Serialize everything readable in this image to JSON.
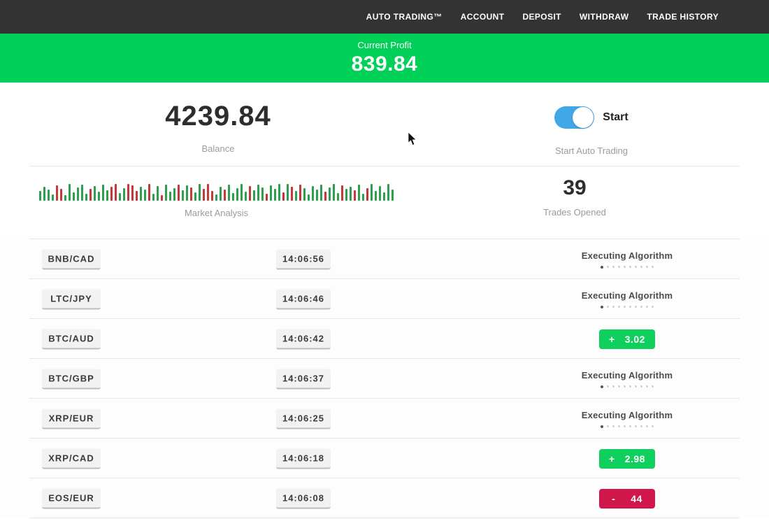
{
  "header": {
    "bg": "#333333",
    "nav": [
      {
        "label": "AUTO TRADING™"
      },
      {
        "label": "ACCOUNT"
      },
      {
        "label": "DEPOSIT"
      },
      {
        "label": "WITHDRAW"
      },
      {
        "label": "TRADE HISTORY"
      }
    ]
  },
  "profit_banner": {
    "label": "Current Profit",
    "value": "839.84",
    "bg": "#00d058"
  },
  "account": {
    "balance": "4239.84",
    "balance_label": "Balance",
    "toggle_label": "Start",
    "toggle_sublabel": "Start Auto Trading",
    "toggle_on": true,
    "toggle_color": "#41a8e8",
    "trades_opened": "39",
    "trades_opened_label": "Trades Opened"
  },
  "chart_data": {
    "type": "bar",
    "title": "Market Analysis",
    "xlabel": "",
    "ylabel": "",
    "legend": false,
    "grid": false,
    "colors": {
      "g": "#2ca04d",
      "r": "#c53838"
    },
    "note": "decorative mini candle-bar strip; heights in px, color g=green up, r=red down",
    "bars": [
      [
        14,
        "g"
      ],
      [
        20,
        "g"
      ],
      [
        16,
        "g"
      ],
      [
        9,
        "g"
      ],
      [
        22,
        "r"
      ],
      [
        17,
        "r"
      ],
      [
        8,
        "g"
      ],
      [
        24,
        "g"
      ],
      [
        12,
        "g"
      ],
      [
        19,
        "g"
      ],
      [
        23,
        "g"
      ],
      [
        10,
        "g"
      ],
      [
        17,
        "r"
      ],
      [
        21,
        "g"
      ],
      [
        13,
        "g"
      ],
      [
        23,
        "g"
      ],
      [
        15,
        "g"
      ],
      [
        20,
        "r"
      ],
      [
        24,
        "r"
      ],
      [
        11,
        "g"
      ],
      [
        18,
        "g"
      ],
      [
        24,
        "r"
      ],
      [
        22,
        "r"
      ],
      [
        14,
        "r"
      ],
      [
        20,
        "g"
      ],
      [
        16,
        "g"
      ],
      [
        24,
        "r"
      ],
      [
        10,
        "g"
      ],
      [
        21,
        "g"
      ],
      [
        8,
        "r"
      ],
      [
        23,
        "g"
      ],
      [
        13,
        "g"
      ],
      [
        18,
        "g"
      ],
      [
        23,
        "r"
      ],
      [
        15,
        "g"
      ],
      [
        22,
        "g"
      ],
      [
        19,
        "r"
      ],
      [
        12,
        "g"
      ],
      [
        24,
        "g"
      ],
      [
        17,
        "r"
      ],
      [
        24,
        "r"
      ],
      [
        14,
        "r"
      ],
      [
        9,
        "g"
      ],
      [
        20,
        "g"
      ],
      [
        16,
        "r"
      ],
      [
        23,
        "g"
      ],
      [
        11,
        "g"
      ],
      [
        18,
        "g"
      ],
      [
        24,
        "g"
      ],
      [
        13,
        "g"
      ],
      [
        21,
        "r"
      ],
      [
        15,
        "g"
      ],
      [
        23,
        "g"
      ],
      [
        19,
        "g"
      ],
      [
        10,
        "r"
      ],
      [
        22,
        "g"
      ],
      [
        17,
        "g"
      ],
      [
        24,
        "g"
      ],
      [
        12,
        "r"
      ],
      [
        24,
        "g"
      ],
      [
        20,
        "r"
      ],
      [
        14,
        "g"
      ],
      [
        23,
        "r"
      ],
      [
        18,
        "g"
      ],
      [
        9,
        "g"
      ],
      [
        21,
        "g"
      ],
      [
        16,
        "g"
      ],
      [
        23,
        "g"
      ],
      [
        13,
        "r"
      ],
      [
        19,
        "g"
      ],
      [
        24,
        "g"
      ],
      [
        11,
        "g"
      ],
      [
        22,
        "r"
      ],
      [
        17,
        "g"
      ],
      [
        20,
        "g"
      ],
      [
        15,
        "r"
      ],
      [
        23,
        "g"
      ],
      [
        10,
        "g"
      ],
      [
        18,
        "r"
      ],
      [
        24,
        "g"
      ],
      [
        14,
        "g"
      ],
      [
        21,
        "g"
      ],
      [
        12,
        "g"
      ],
      [
        24,
        "g"
      ],
      [
        16,
        "g"
      ]
    ]
  },
  "status_meta": {
    "dots": 10,
    "active_dot": 0
  },
  "badge_colors": {
    "profit": "#0fd05c",
    "loss": "#d0164a"
  },
  "trades": [
    {
      "pair": "BNB/CAD",
      "time": "14:06:56",
      "status": "executing",
      "status_label": "Executing Algorithm"
    },
    {
      "pair": "LTC/JPY",
      "time": "14:06:46",
      "status": "executing",
      "status_label": "Executing Algorithm"
    },
    {
      "pair": "BTC/AUD",
      "time": "14:06:42",
      "status": "profit",
      "sign": "+",
      "value": "3.02"
    },
    {
      "pair": "BTC/GBP",
      "time": "14:06:37",
      "status": "executing",
      "status_label": "Executing Algorithm"
    },
    {
      "pair": "XRP/EUR",
      "time": "14:06:25",
      "status": "executing",
      "status_label": "Executing Algorithm"
    },
    {
      "pair": "XRP/CAD",
      "time": "14:06:18",
      "status": "profit",
      "sign": "+",
      "value": "2.98"
    },
    {
      "pair": "EOS/EUR",
      "time": "14:06:08",
      "status": "loss",
      "sign": "-",
      "value": "44"
    }
  ]
}
